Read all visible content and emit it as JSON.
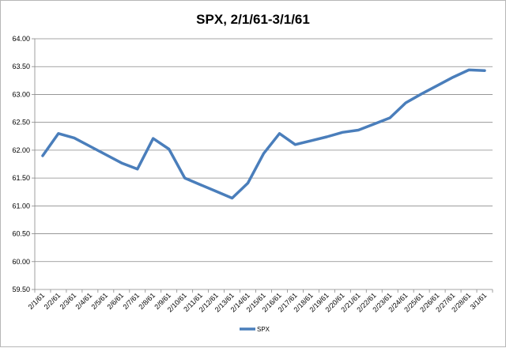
{
  "chart_data": {
    "type": "line",
    "title": "SPX, 2/1/61-3/1/61",
    "xlabel": "",
    "ylabel": "",
    "ylim": [
      59.5,
      64.0
    ],
    "yticks": [
      "59.50",
      "60.00",
      "60.50",
      "61.00",
      "61.50",
      "62.00",
      "62.50",
      "63.00",
      "63.50",
      "64.00"
    ],
    "categories": [
      "2/1/61",
      "2/2/61",
      "2/3/61",
      "2/4/61",
      "2/5/61",
      "2/6/61",
      "2/7/61",
      "2/8/61",
      "2/9/61",
      "2/10/61",
      "2/11/61",
      "2/12/61",
      "2/13/61",
      "2/14/61",
      "2/15/61",
      "2/16/61",
      "2/17/61",
      "2/18/61",
      "2/19/61",
      "2/20/61",
      "2/21/61",
      "2/22/61",
      "2/23/61",
      "2/24/61",
      "2/25/61",
      "2/26/61",
      "2/27/61",
      "2/28/61",
      "3/1/61"
    ],
    "grid": "horizontal",
    "legend": "bottom",
    "series": [
      {
        "name": "SPX",
        "color": "#4a7ebb",
        "values": [
          61.9,
          62.3,
          62.22,
          62.07,
          61.92,
          61.77,
          61.66,
          62.21,
          62.02,
          61.5,
          61.38,
          61.26,
          61.14,
          61.41,
          61.94,
          62.3,
          62.1,
          62.17,
          62.24,
          62.32,
          62.36,
          62.47,
          62.58,
          62.85,
          63.01,
          63.16,
          63.31,
          63.44,
          63.43
        ]
      }
    ]
  }
}
